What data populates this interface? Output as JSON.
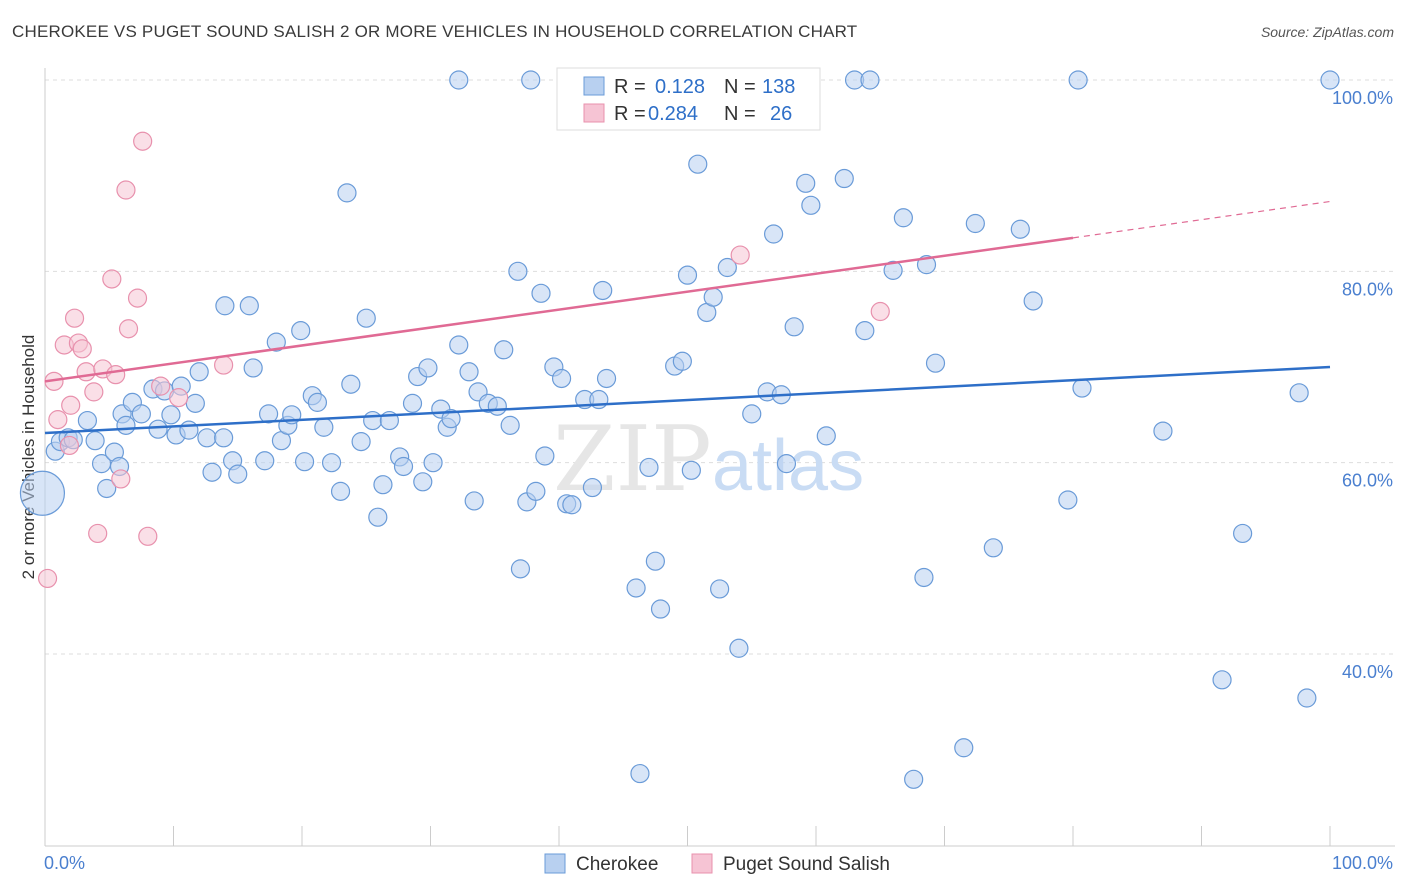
{
  "header": {
    "title": "CHEROKEE VS PUGET SOUND SALISH 2 OR MORE VEHICLES IN HOUSEHOLD CORRELATION CHART",
    "source": "Source: ZipAtlas.com"
  },
  "watermark": {
    "zip": "ZIP",
    "atlas": "atlas"
  },
  "colors": {
    "cherokee_fill": "#b8d0f0",
    "cherokee_stroke": "#6a9bd8",
    "cherokee_line": "#2e6fc8",
    "salish_fill": "#f6c4d4",
    "salish_stroke": "#e891ad",
    "salish_line": "#e06a94",
    "tick_text": "#4a7fcf",
    "grid": "#dddddd"
  },
  "chart_data": {
    "type": "scatter",
    "title": "CHEROKEE VS PUGET SOUND SALISH 2 OR MORE VEHICLES IN HOUSEHOLD CORRELATION CHART",
    "xlabel": "",
    "ylabel": "2 or more Vehicles in Household",
    "xlim": [
      0,
      100
    ],
    "ylim": [
      20,
      102
    ],
    "x_tick_labels": [
      "0.0%",
      "100.0%"
    ],
    "y_ticks": [
      40,
      60,
      80,
      100
    ],
    "y_tick_labels": [
      "40.0%",
      "60.0%",
      "80.0%",
      "100.0%"
    ],
    "grid": true,
    "legend_position": "top-center",
    "stats": [
      {
        "r_label": "R =",
        "r_value": "0.128",
        "n_label": "N =",
        "n_value": "138"
      },
      {
        "r_label": "R =",
        "r_value": "0.284",
        "n_label": "N =",
        "n_value": "26"
      }
    ],
    "series": [
      {
        "name": "Cherokee",
        "trend": {
          "x": [
            0,
            100
          ],
          "y": [
            63.1,
            70.0
          ]
        },
        "points": [
          [
            -0.2,
            56.8
          ],
          [
            0.8,
            61.2
          ],
          [
            1.2,
            62.2
          ],
          [
            1.8,
            62.6
          ],
          [
            2.2,
            62.4
          ],
          [
            3.3,
            64.4
          ],
          [
            3.9,
            62.3
          ],
          [
            4.4,
            59.9
          ],
          [
            4.8,
            57.3
          ],
          [
            5.4,
            61.1
          ],
          [
            5.8,
            59.6
          ],
          [
            6.0,
            65.1
          ],
          [
            6.3,
            63.9
          ],
          [
            6.8,
            66.3
          ],
          [
            7.5,
            65.1
          ],
          [
            8.4,
            67.7
          ],
          [
            8.8,
            63.5
          ],
          [
            9.3,
            67.5
          ],
          [
            9.8,
            65.0
          ],
          [
            10.2,
            62.9
          ],
          [
            10.6,
            68.0
          ],
          [
            11.2,
            63.4
          ],
          [
            11.7,
            66.2
          ],
          [
            12.0,
            69.5
          ],
          [
            12.6,
            62.6
          ],
          [
            13.0,
            59.0
          ],
          [
            13.9,
            62.6
          ],
          [
            14.6,
            60.2
          ],
          [
            15.0,
            58.8
          ],
          [
            14.0,
            76.4
          ],
          [
            15.9,
            76.4
          ],
          [
            16.2,
            69.9
          ],
          [
            17.1,
            60.2
          ],
          [
            17.4,
            65.1
          ],
          [
            18.0,
            72.6
          ],
          [
            18.4,
            62.3
          ],
          [
            18.9,
            63.9
          ],
          [
            19.2,
            65.0
          ],
          [
            19.9,
            73.8
          ],
          [
            20.2,
            60.1
          ],
          [
            20.8,
            67.0
          ],
          [
            21.2,
            66.3
          ],
          [
            21.7,
            63.7
          ],
          [
            22.3,
            60.0
          ],
          [
            23.0,
            57.0
          ],
          [
            23.5,
            88.2
          ],
          [
            23.8,
            68.2
          ],
          [
            24.6,
            62.2
          ],
          [
            25.0,
            75.1
          ],
          [
            25.5,
            64.4
          ],
          [
            25.9,
            54.3
          ],
          [
            26.3,
            57.7
          ],
          [
            26.8,
            64.4
          ],
          [
            27.6,
            60.6
          ],
          [
            27.9,
            59.6
          ],
          [
            28.6,
            66.2
          ],
          [
            29.0,
            69.0
          ],
          [
            29.4,
            58.0
          ],
          [
            29.8,
            69.9
          ],
          [
            30.2,
            60.0
          ],
          [
            30.8,
            65.6
          ],
          [
            31.3,
            63.7
          ],
          [
            31.6,
            64.6
          ],
          [
            32.2,
            72.3
          ],
          [
            33.0,
            69.5
          ],
          [
            33.4,
            56.0
          ],
          [
            33.7,
            67.4
          ],
          [
            34.5,
            66.2
          ],
          [
            35.2,
            65.9
          ],
          [
            35.7,
            71.8
          ],
          [
            36.2,
            63.9
          ],
          [
            36.8,
            80.0
          ],
          [
            37.0,
            48.9
          ],
          [
            37.5,
            55.9
          ],
          [
            38.2,
            57.0
          ],
          [
            38.6,
            77.7
          ],
          [
            38.9,
            60.7
          ],
          [
            39.6,
            70.0
          ],
          [
            40.2,
            68.8
          ],
          [
            40.6,
            55.7
          ],
          [
            41.0,
            55.6
          ],
          [
            42.0,
            66.6
          ],
          [
            42.6,
            57.4
          ],
          [
            43.1,
            66.6
          ],
          [
            43.4,
            78.0
          ],
          [
            43.7,
            68.8
          ],
          [
            46.0,
            46.9
          ],
          [
            46.3,
            27.5
          ],
          [
            47.0,
            59.5
          ],
          [
            47.5,
            49.7
          ],
          [
            47.9,
            44.7
          ],
          [
            49.0,
            70.1
          ],
          [
            49.6,
            70.6
          ],
          [
            50.0,
            79.6
          ],
          [
            50.3,
            59.2
          ],
          [
            50.8,
            91.2
          ],
          [
            51.5,
            75.7
          ],
          [
            52.0,
            77.3
          ],
          [
            52.5,
            46.8
          ],
          [
            53.1,
            80.4
          ],
          [
            54.0,
            40.6
          ],
          [
            55.0,
            65.1
          ],
          [
            56.2,
            67.4
          ],
          [
            56.7,
            83.9
          ],
          [
            57.3,
            67.1
          ],
          [
            57.7,
            59.9
          ],
          [
            58.3,
            74.2
          ],
          [
            59.2,
            89.2
          ],
          [
            59.6,
            86.9
          ],
          [
            60.8,
            62.8
          ],
          [
            62.2,
            89.7
          ],
          [
            63.0,
            100.0
          ],
          [
            63.8,
            73.8
          ],
          [
            64.2,
            100.0
          ],
          [
            66.0,
            80.1
          ],
          [
            66.8,
            85.6
          ],
          [
            67.6,
            26.9
          ],
          [
            68.4,
            48.0
          ],
          [
            68.6,
            80.7
          ],
          [
            69.3,
            70.4
          ],
          [
            71.5,
            30.2
          ],
          [
            72.4,
            85.0
          ],
          [
            73.8,
            51.1
          ],
          [
            75.9,
            84.4
          ],
          [
            76.9,
            76.9
          ],
          [
            79.6,
            56.1
          ],
          [
            80.4,
            100.0
          ],
          [
            80.7,
            67.8
          ],
          [
            87.0,
            63.3
          ],
          [
            91.6,
            37.3
          ],
          [
            93.2,
            52.6
          ],
          [
            97.6,
            67.3
          ],
          [
            98.2,
            35.4
          ],
          [
            100.0,
            100.0
          ],
          [
            53.8,
            100.0
          ],
          [
            46.8,
            100.0
          ],
          [
            37.8,
            100.0
          ],
          [
            32.2,
            100.0
          ]
        ]
      },
      {
        "name": "Puget Sound Salish",
        "trend": {
          "x": [
            0,
            80
          ],
          "y": [
            68.5,
            83.5
          ]
        },
        "trend_dashed": {
          "x": [
            80,
            100
          ],
          "y": [
            83.5,
            87.3
          ]
        },
        "points": [
          [
            0.2,
            47.9
          ],
          [
            0.7,
            68.5
          ],
          [
            1.0,
            64.5
          ],
          [
            1.5,
            72.3
          ],
          [
            1.9,
            61.8
          ],
          [
            2.0,
            66.0
          ],
          [
            2.3,
            75.1
          ],
          [
            2.6,
            72.5
          ],
          [
            2.9,
            71.9
          ],
          [
            3.2,
            69.5
          ],
          [
            3.8,
            67.4
          ],
          [
            4.1,
            52.6
          ],
          [
            4.5,
            69.8
          ],
          [
            5.2,
            79.2
          ],
          [
            5.5,
            69.2
          ],
          [
            5.9,
            58.3
          ],
          [
            6.3,
            88.5
          ],
          [
            6.5,
            74.0
          ],
          [
            7.2,
            77.2
          ],
          [
            7.6,
            93.6
          ],
          [
            8.0,
            52.3
          ],
          [
            9.0,
            68.0
          ],
          [
            10.4,
            66.8
          ],
          [
            13.9,
            70.2
          ],
          [
            54.1,
            81.7
          ],
          [
            65.0,
            75.8
          ]
        ]
      }
    ]
  }
}
